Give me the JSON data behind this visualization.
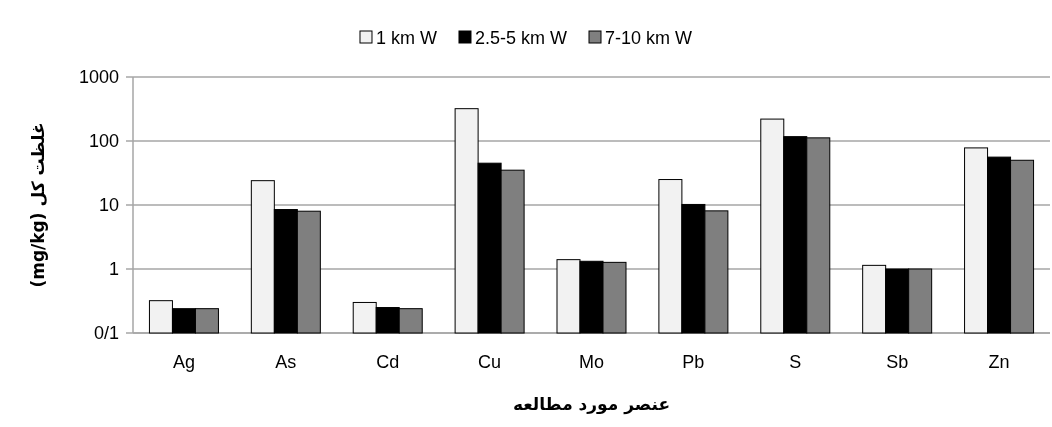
{
  "chart_data": {
    "type": "bar",
    "xlabel": "عنصر مورد مطالعه",
    "ylabel": "غلظت کل (mg/kg)",
    "categories": [
      "Ag",
      "As",
      "Cd",
      "Cu",
      "Mo",
      "Pb",
      "S",
      "Sb",
      "Zn"
    ],
    "series": [
      {
        "name": "1 km W",
        "color": "#f2f2f2",
        "values": [
          0.32,
          24,
          0.3,
          320,
          1.4,
          25,
          220,
          1.14,
          78
        ]
      },
      {
        "name": "2.5-5 km W",
        "color": "#000000",
        "values": [
          0.24,
          8.5,
          0.25,
          45,
          1.32,
          10.2,
          117,
          1.0,
          56
        ]
      },
      {
        "name": "7-10 km W",
        "color": "#7f7f7f",
        "values": [
          0.24,
          8.0,
          0.24,
          35,
          1.27,
          8.1,
          112,
          1.0,
          50
        ]
      }
    ],
    "log": true,
    "ylim": [
      0.1,
      1000
    ],
    "yticks": [
      {
        "value": 0.1,
        "label": "0/1"
      },
      1,
      10,
      100,
      1000
    ],
    "grid": "y",
    "legend": "top"
  }
}
